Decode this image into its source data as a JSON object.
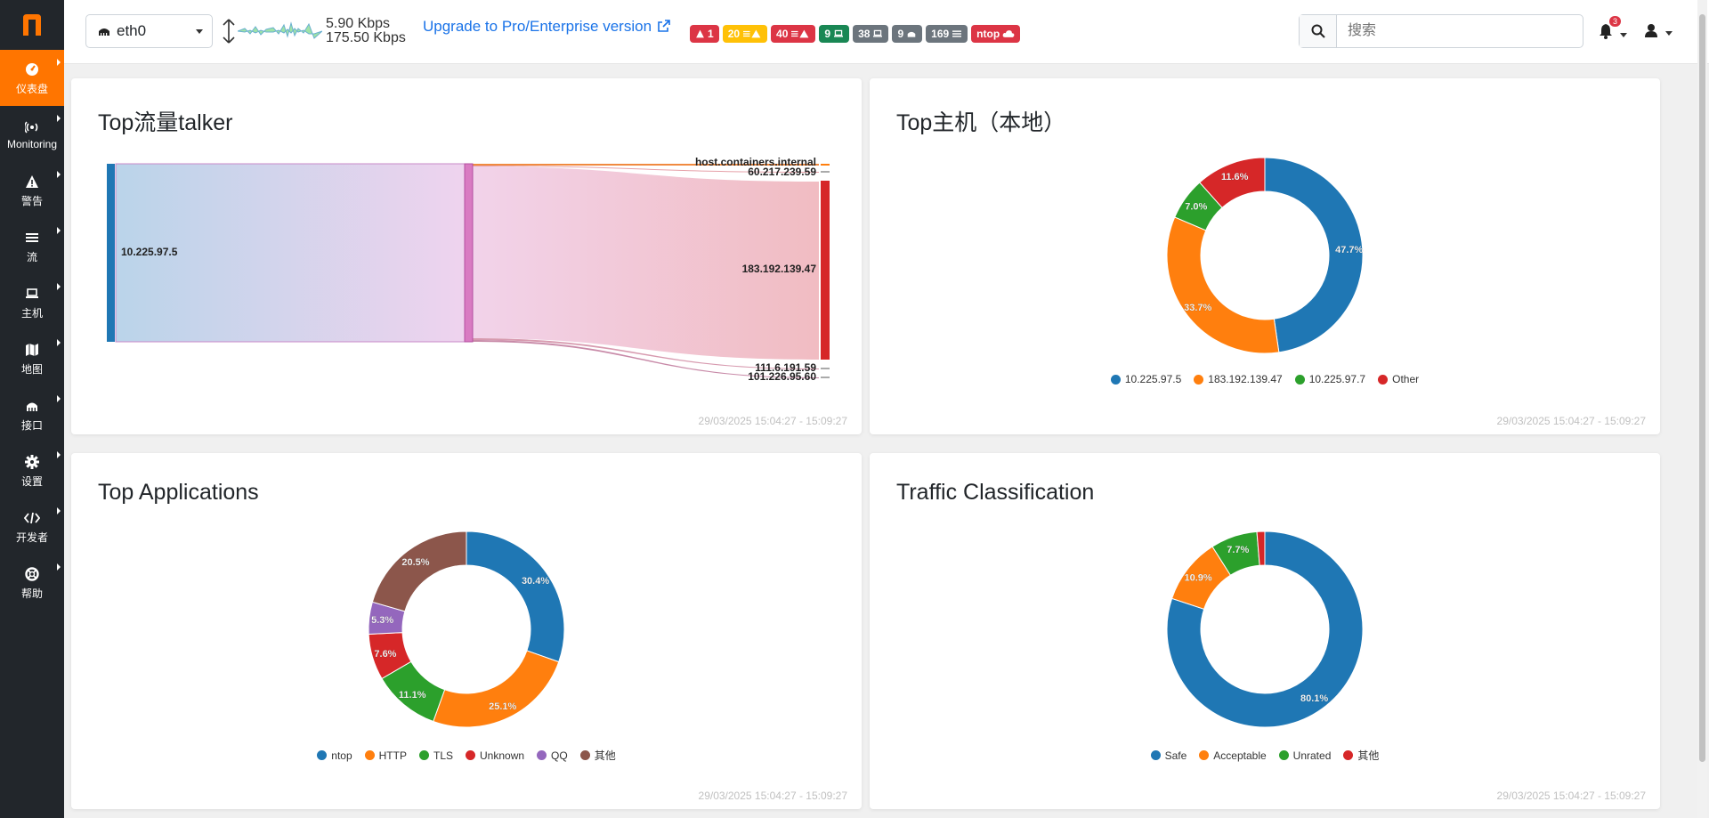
{
  "sidebar": {
    "items": [
      {
        "label": "仪表盘",
        "icon": "dashboard-icon",
        "active": true
      },
      {
        "label": "Monitoring",
        "icon": "monitoring-icon"
      },
      {
        "label": "警告",
        "icon": "alert-icon"
      },
      {
        "label": "流",
        "icon": "flows-icon"
      },
      {
        "label": "主机",
        "icon": "laptop-icon"
      },
      {
        "label": "地图",
        "icon": "map-icon"
      },
      {
        "label": "接口",
        "icon": "interface-icon"
      },
      {
        "label": "设置",
        "icon": "gear-icon"
      },
      {
        "label": "开发者",
        "icon": "code-icon"
      },
      {
        "label": "帮助",
        "icon": "help-icon"
      }
    ]
  },
  "topbar": {
    "interface": "eth0",
    "rate_up": "5.90 Kbps",
    "rate_down": "175.50 Kbps",
    "upgrade": "Upgrade to Pro/Enterprise version",
    "badges": [
      {
        "text": "1",
        "icon": "alert-icon",
        "color": "#dc3545"
      },
      {
        "text": "20",
        "icon": "flows-alert-icon",
        "color": "#ffc107"
      },
      {
        "text": "40",
        "icon": "flows-alert-icon",
        "color": "#dc3545"
      },
      {
        "text": "9",
        "icon": "laptop-icon",
        "color": "#198754"
      },
      {
        "text": "38",
        "icon": "laptop-icon",
        "color": "#6c757d"
      },
      {
        "text": "9",
        "icon": "interface-icon",
        "color": "#6c757d"
      },
      {
        "text": "169",
        "icon": "flows-icon",
        "color": "#6c757d"
      },
      {
        "text": "ntop",
        "icon": "cloud-icon",
        "color": "#dc3545"
      }
    ],
    "search_placeholder": "搜索",
    "notification_count": "3"
  },
  "cards": {
    "talkers": {
      "title": "Top流量talker",
      "timestamp": "29/03/2025 15:04:27 - 15:09:27",
      "source": "10.225.97.5",
      "targets": [
        "host.containers.internal",
        "60.217.239.59",
        "183.192.139.47",
        "111.6.191.59",
        "101.226.95.60"
      ]
    },
    "hosts": {
      "title": "Top主机（本地）",
      "timestamp": "29/03/2025 15:04:27 - 15:09:27"
    },
    "apps": {
      "title": "Top Applications",
      "timestamp": "29/03/2025 15:04:27 - 15:09:27"
    },
    "traffic": {
      "title": "Traffic Classification",
      "timestamp": "29/03/2025 15:04:27 - 15:09:27"
    }
  },
  "chart_data": [
    {
      "type": "pie",
      "title": "Top主机（本地）",
      "categories": [
        "10.225.97.5",
        "183.192.139.47",
        "10.225.97.7",
        "Other"
      ],
      "values": [
        47.7,
        33.7,
        7.0,
        11.6
      ],
      "labels": [
        "47.7%",
        "33.7%",
        "7.0%",
        "11.6%"
      ],
      "colors": [
        "#1f77b4",
        "#ff7f0e",
        "#2ca02c",
        "#d62728"
      ]
    },
    {
      "type": "pie",
      "title": "Top Applications",
      "categories": [
        "ntop",
        "HTTP",
        "TLS",
        "Unknown",
        "QQ",
        "其他"
      ],
      "values": [
        30.4,
        25.1,
        11.1,
        7.6,
        5.3,
        20.5
      ],
      "labels": [
        "30.4%",
        "25.1%",
        "11.1%",
        "7.6%",
        "5.3%",
        "20.5%"
      ],
      "colors": [
        "#1f77b4",
        "#ff7f0e",
        "#2ca02c",
        "#d62728",
        "#9467bd",
        "#8c564b"
      ]
    },
    {
      "type": "pie",
      "title": "Traffic Classification",
      "categories": [
        "Safe",
        "Acceptable",
        "Unrated",
        "其他"
      ],
      "values": [
        80.1,
        10.9,
        7.7,
        1.3
      ],
      "labels": [
        "80.1%",
        "10.9%",
        "7.7%",
        ""
      ],
      "colors": [
        "#1f77b4",
        "#ff7f0e",
        "#2ca02c",
        "#d62728"
      ]
    }
  ]
}
